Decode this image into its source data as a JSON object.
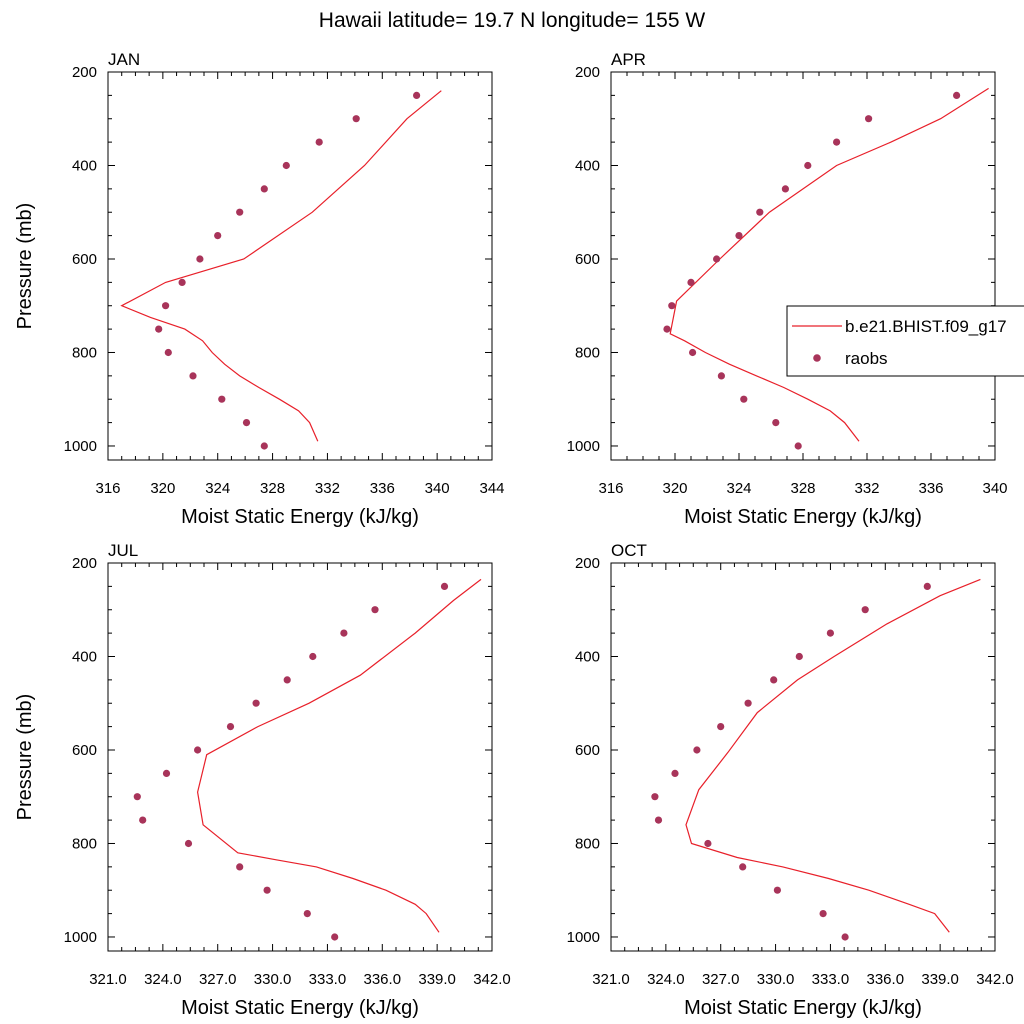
{
  "title": "Hawaii  latitude= 19.7 N longitude= 155 W",
  "legend": {
    "model_label": "b.e21.BHIST.f09_g17",
    "obs_label": "raobs",
    "model_color": "#e8202a",
    "obs_color": "#a8345a"
  },
  "chart_data": [
    {
      "type": "line",
      "title": "JAN",
      "xlabel": "Moist Static Energy (kJ/kg)",
      "ylabel": "Pressure (mb)",
      "xlim": [
        316,
        344
      ],
      "ylim": [
        1030,
        200
      ],
      "xticks": [
        "316",
        "320",
        "324",
        "328",
        "332",
        "336",
        "340",
        "344"
      ],
      "yticks": [
        "200",
        "400",
        "600",
        "800",
        "1000"
      ],
      "series": [
        {
          "name": "b.e21.BHIST.f09_g17",
          "x": [
            331.3,
            330.7,
            329.9,
            328.5,
            327.0,
            325.6,
            324.5,
            323.6,
            322.9,
            321.6,
            319.1,
            317.0,
            320.2,
            325.9,
            330.9,
            334.7,
            337.8,
            340.3
          ],
          "y": [
            990,
            950,
            925,
            900,
            875,
            850,
            825,
            800,
            775,
            750,
            725,
            700,
            650,
            600,
            500,
            400,
            300,
            240
          ]
        },
        {
          "name": "raobs",
          "x": [
            327.4,
            326.1,
            324.3,
            322.2,
            320.4,
            319.7,
            320.2,
            321.4,
            322.7,
            324.0,
            325.6,
            327.4,
            329.0,
            331.4,
            334.1,
            338.5
          ],
          "y": [
            1000,
            950,
            900,
            850,
            800,
            750,
            700,
            650,
            600,
            550,
            500,
            450,
            400,
            350,
            300,
            250
          ]
        }
      ]
    },
    {
      "type": "line",
      "title": "APR",
      "xlabel": "Moist Static Energy (kJ/kg)",
      "ylabel": "",
      "xlim": [
        316,
        340
      ],
      "ylim": [
        1030,
        200
      ],
      "xticks": [
        "316",
        "320",
        "324",
        "328",
        "332",
        "336",
        "340"
      ],
      "yticks": [
        "200",
        "400",
        "600",
        "800",
        "1000"
      ],
      "series": [
        {
          "name": "b.e21.BHIST.f09_g17",
          "x": [
            331.5,
            330.6,
            329.7,
            328.3,
            326.8,
            325.1,
            323.4,
            321.9,
            320.6,
            319.7,
            319.9,
            320.1,
            322.8,
            325.9,
            330.1,
            333.5,
            336.6,
            339.6
          ],
          "y": [
            990,
            950,
            925,
            900,
            875,
            850,
            825,
            800,
            775,
            760,
            725,
            690,
            600,
            500,
            400,
            350,
            300,
            235
          ]
        },
        {
          "name": "raobs",
          "x": [
            327.7,
            326.3,
            324.3,
            322.9,
            321.1,
            319.5,
            319.8,
            321.0,
            322.6,
            324.0,
            325.3,
            326.9,
            328.3,
            330.1,
            332.1,
            337.6
          ],
          "y": [
            1000,
            950,
            900,
            850,
            800,
            750,
            700,
            650,
            600,
            550,
            500,
            450,
            400,
            350,
            300,
            250
          ]
        }
      ]
    },
    {
      "type": "line",
      "title": "JUL",
      "xlabel": "Moist Static Energy (kJ/kg)",
      "ylabel": "Pressure (mb)",
      "xlim": [
        321,
        342
      ],
      "ylim": [
        1030,
        200
      ],
      "xticks": [
        "321.0",
        "324.0",
        "327.0",
        "330.0",
        "333.0",
        "336.0",
        "339.0",
        "342.0"
      ],
      "yticks": [
        "200",
        "400",
        "600",
        "800",
        "1000"
      ],
      "series": [
        {
          "name": "b.e21.BHIST.f09_g17",
          "x": [
            339.1,
            338.4,
            337.8,
            336.2,
            334.4,
            332.4,
            330.2,
            328.1,
            326.2,
            325.9,
            326.4,
            329.2,
            332.0,
            334.8,
            337.8,
            339.9,
            341.4
          ],
          "y": [
            990,
            950,
            930,
            900,
            875,
            850,
            835,
            820,
            760,
            690,
            610,
            550,
            500,
            440,
            350,
            280,
            235
          ]
        },
        {
          "name": "raobs",
          "x": [
            333.4,
            331.9,
            329.7,
            328.2,
            325.4,
            322.9,
            322.6,
            324.2,
            325.9,
            327.7,
            329.1,
            330.8,
            332.2,
            333.9,
            335.6,
            339.4
          ],
          "y": [
            1000,
            950,
            900,
            850,
            800,
            750,
            700,
            650,
            600,
            550,
            500,
            450,
            400,
            350,
            300,
            250
          ]
        }
      ]
    },
    {
      "type": "line",
      "title": "OCT",
      "xlabel": "Moist Static Energy (kJ/kg)",
      "ylabel": "",
      "xlim": [
        321,
        342
      ],
      "ylim": [
        1030,
        200
      ],
      "xticks": [
        "321.0",
        "324.0",
        "327.0",
        "330.0",
        "333.0",
        "336.0",
        "339.0",
        "342.0"
      ],
      "yticks": [
        "200",
        "400",
        "600",
        "800",
        "1000"
      ],
      "series": [
        {
          "name": "b.e21.BHIST.f09_g17",
          "x": [
            339.5,
            338.7,
            337.3,
            335.1,
            332.9,
            330.4,
            327.9,
            325.4,
            325.1,
            325.8,
            327.4,
            329.0,
            331.2,
            333.2,
            336.1,
            339.0,
            341.2
          ],
          "y": [
            990,
            950,
            930,
            900,
            875,
            850,
            830,
            800,
            760,
            685,
            605,
            520,
            450,
            400,
            330,
            270,
            235
          ]
        },
        {
          "name": "raobs",
          "x": [
            333.8,
            332.6,
            330.1,
            328.2,
            326.3,
            323.6,
            323.4,
            324.5,
            325.7,
            327.0,
            328.5,
            329.9,
            331.3,
            333.0,
            334.9,
            338.3
          ],
          "y": [
            1000,
            950,
            900,
            850,
            800,
            750,
            700,
            650,
            600,
            550,
            500,
            450,
            400,
            350,
            300,
            250
          ]
        }
      ]
    }
  ]
}
